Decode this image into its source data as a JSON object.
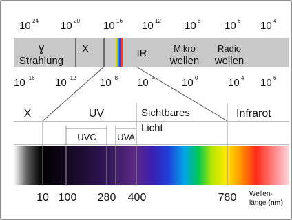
{
  "top_scale": {
    "base": "10",
    "exponents": [
      "24",
      "20",
      "16",
      "12",
      "8",
      "6",
      "4"
    ],
    "band_labels": [
      {
        "id": "gamma",
        "symbol": "ɣ",
        "label": "Strahlung"
      },
      {
        "id": "xray",
        "symbol": "X",
        "label": ""
      },
      {
        "id": "ir",
        "symbol": "",
        "label": "IR"
      },
      {
        "id": "micro",
        "line1": "Mikro",
        "line2": "wellen"
      },
      {
        "id": "radio",
        "line1": "Radio",
        "line2": "wellen"
      }
    ]
  },
  "bottom_scale": {
    "base": "10",
    "exponents": [
      "-16",
      "-12",
      "-8",
      "-4",
      "0",
      "4",
      "6"
    ]
  },
  "regions": {
    "x": "X",
    "uv": "UV",
    "visible_line1": "Sichtbares",
    "visible_line2": "Licht",
    "infrared": "Infrarot",
    "uvc": "UVC",
    "uva": "UVA"
  },
  "wavelength_ticks": [
    "10",
    "100",
    "280",
    "400",
    "780"
  ],
  "axis_label": {
    "line1": "Wellen-",
    "line2": "länge",
    "unit": "(nm)"
  },
  "colors": {
    "band_gray": "#c8c8c8",
    "frame": "#444444",
    "violet": "#5b2a86",
    "red": "#ff1a1a"
  }
}
